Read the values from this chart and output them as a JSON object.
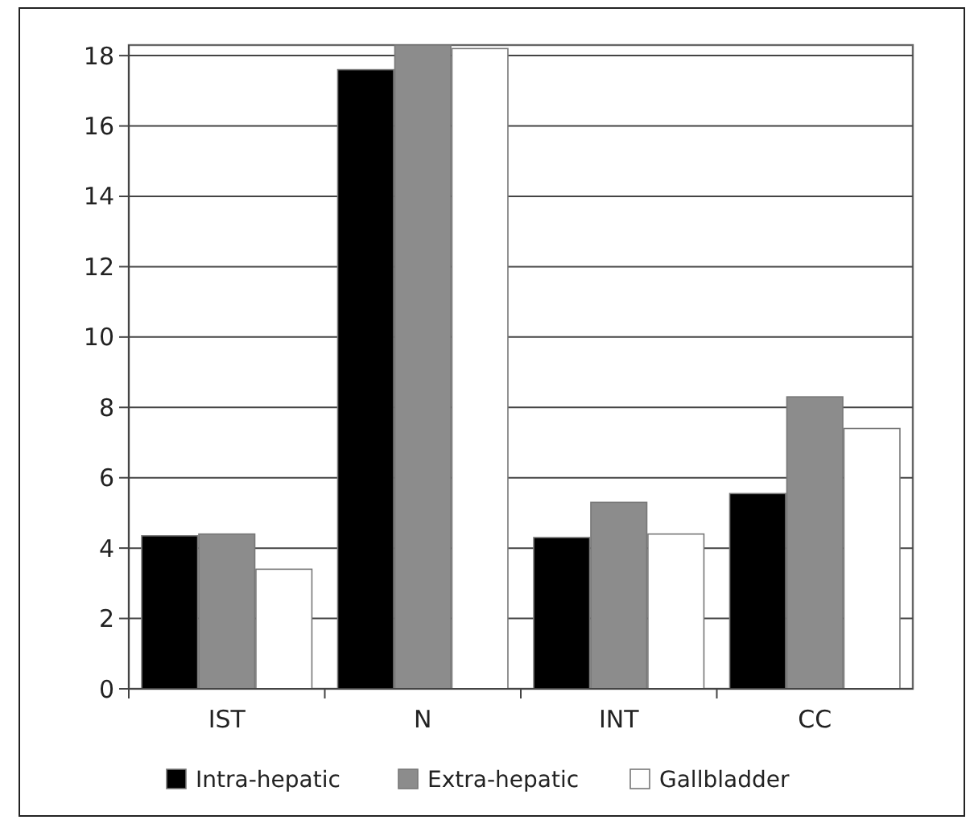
{
  "chart_data": {
    "type": "bar",
    "categories": [
      "IST",
      "N",
      "INT",
      "CC"
    ],
    "series": [
      {
        "name": "Intra-hepatic",
        "color": "#000000",
        "values": [
          4.35,
          17.6,
          4.3,
          5.55
        ]
      },
      {
        "name": "Extra-hepatic",
        "color": "#8c8c8c",
        "values": [
          4.4,
          18.3,
          5.3,
          8.3
        ]
      },
      {
        "name": "Gallbladder",
        "color": "#ffffff",
        "values": [
          3.4,
          18.2,
          4.4,
          7.4
        ]
      }
    ],
    "ylim": [
      0,
      18.3
    ],
    "yticks": [
      0,
      2,
      4,
      6,
      8,
      10,
      12,
      14,
      16,
      18
    ],
    "grid": "y",
    "legend": "bottom"
  }
}
